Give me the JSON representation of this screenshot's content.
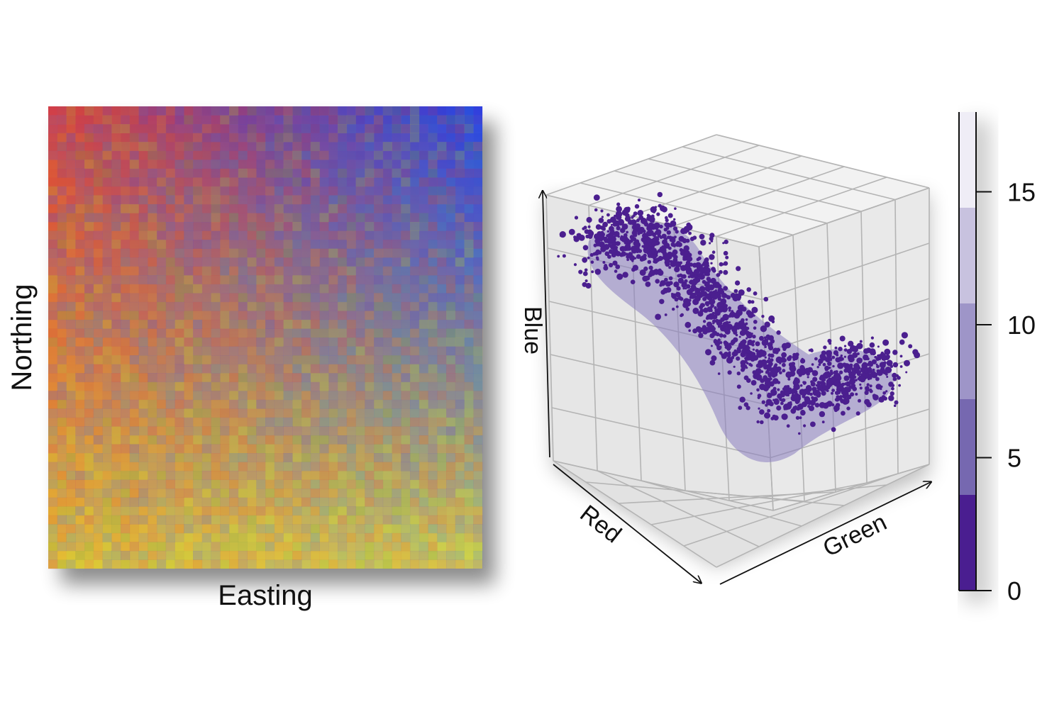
{
  "panels": {
    "map": {
      "xlabel": "Easting",
      "ylabel": "Northing",
      "corner_colors": {
        "top_left": "#d9403a",
        "top_right": "#1f3fe6",
        "bottom_left": "#e6c833",
        "bottom_right": "#d8d84a"
      }
    },
    "cube": {
      "axis_labels": {
        "red": "Red",
        "green": "Green",
        "blue": "Blue"
      },
      "point_color": "#4b1f8f",
      "grid_divisions": 5
    }
  },
  "colorbar": {
    "tick_labels": [
      "0",
      "5",
      "10",
      "15"
    ],
    "ticks": [
      0,
      5,
      10,
      15
    ],
    "range": [
      0,
      18
    ],
    "bands": [
      {
        "from": 0,
        "to": 3.6,
        "color": "#4a1e90"
      },
      {
        "from": 3.6,
        "to": 7.2,
        "color": "#7668b0"
      },
      {
        "from": 7.2,
        "to": 10.8,
        "color": "#9e95c8"
      },
      {
        "from": 10.8,
        "to": 14.4,
        "color": "#c8c2df"
      },
      {
        "from": 14.4,
        "to": 18,
        "color": "#efedf6"
      }
    ]
  },
  "chart_data": [
    {
      "type": "heatmap",
      "title": "",
      "xlabel": "Easting",
      "ylabel": "Northing",
      "description_colors": {
        "top_left": "#d9403a",
        "top_right": "#1f3fe6",
        "bottom_left": "#e6c833",
        "bottom_right": "#d8d84a"
      }
    },
    {
      "type": "scatter",
      "title": "",
      "axes": [
        "Red",
        "Green",
        "Blue"
      ],
      "color_scale": {
        "range": [
          0,
          18
        ],
        "ticks": [
          0,
          5,
          10,
          15
        ]
      }
    }
  ]
}
